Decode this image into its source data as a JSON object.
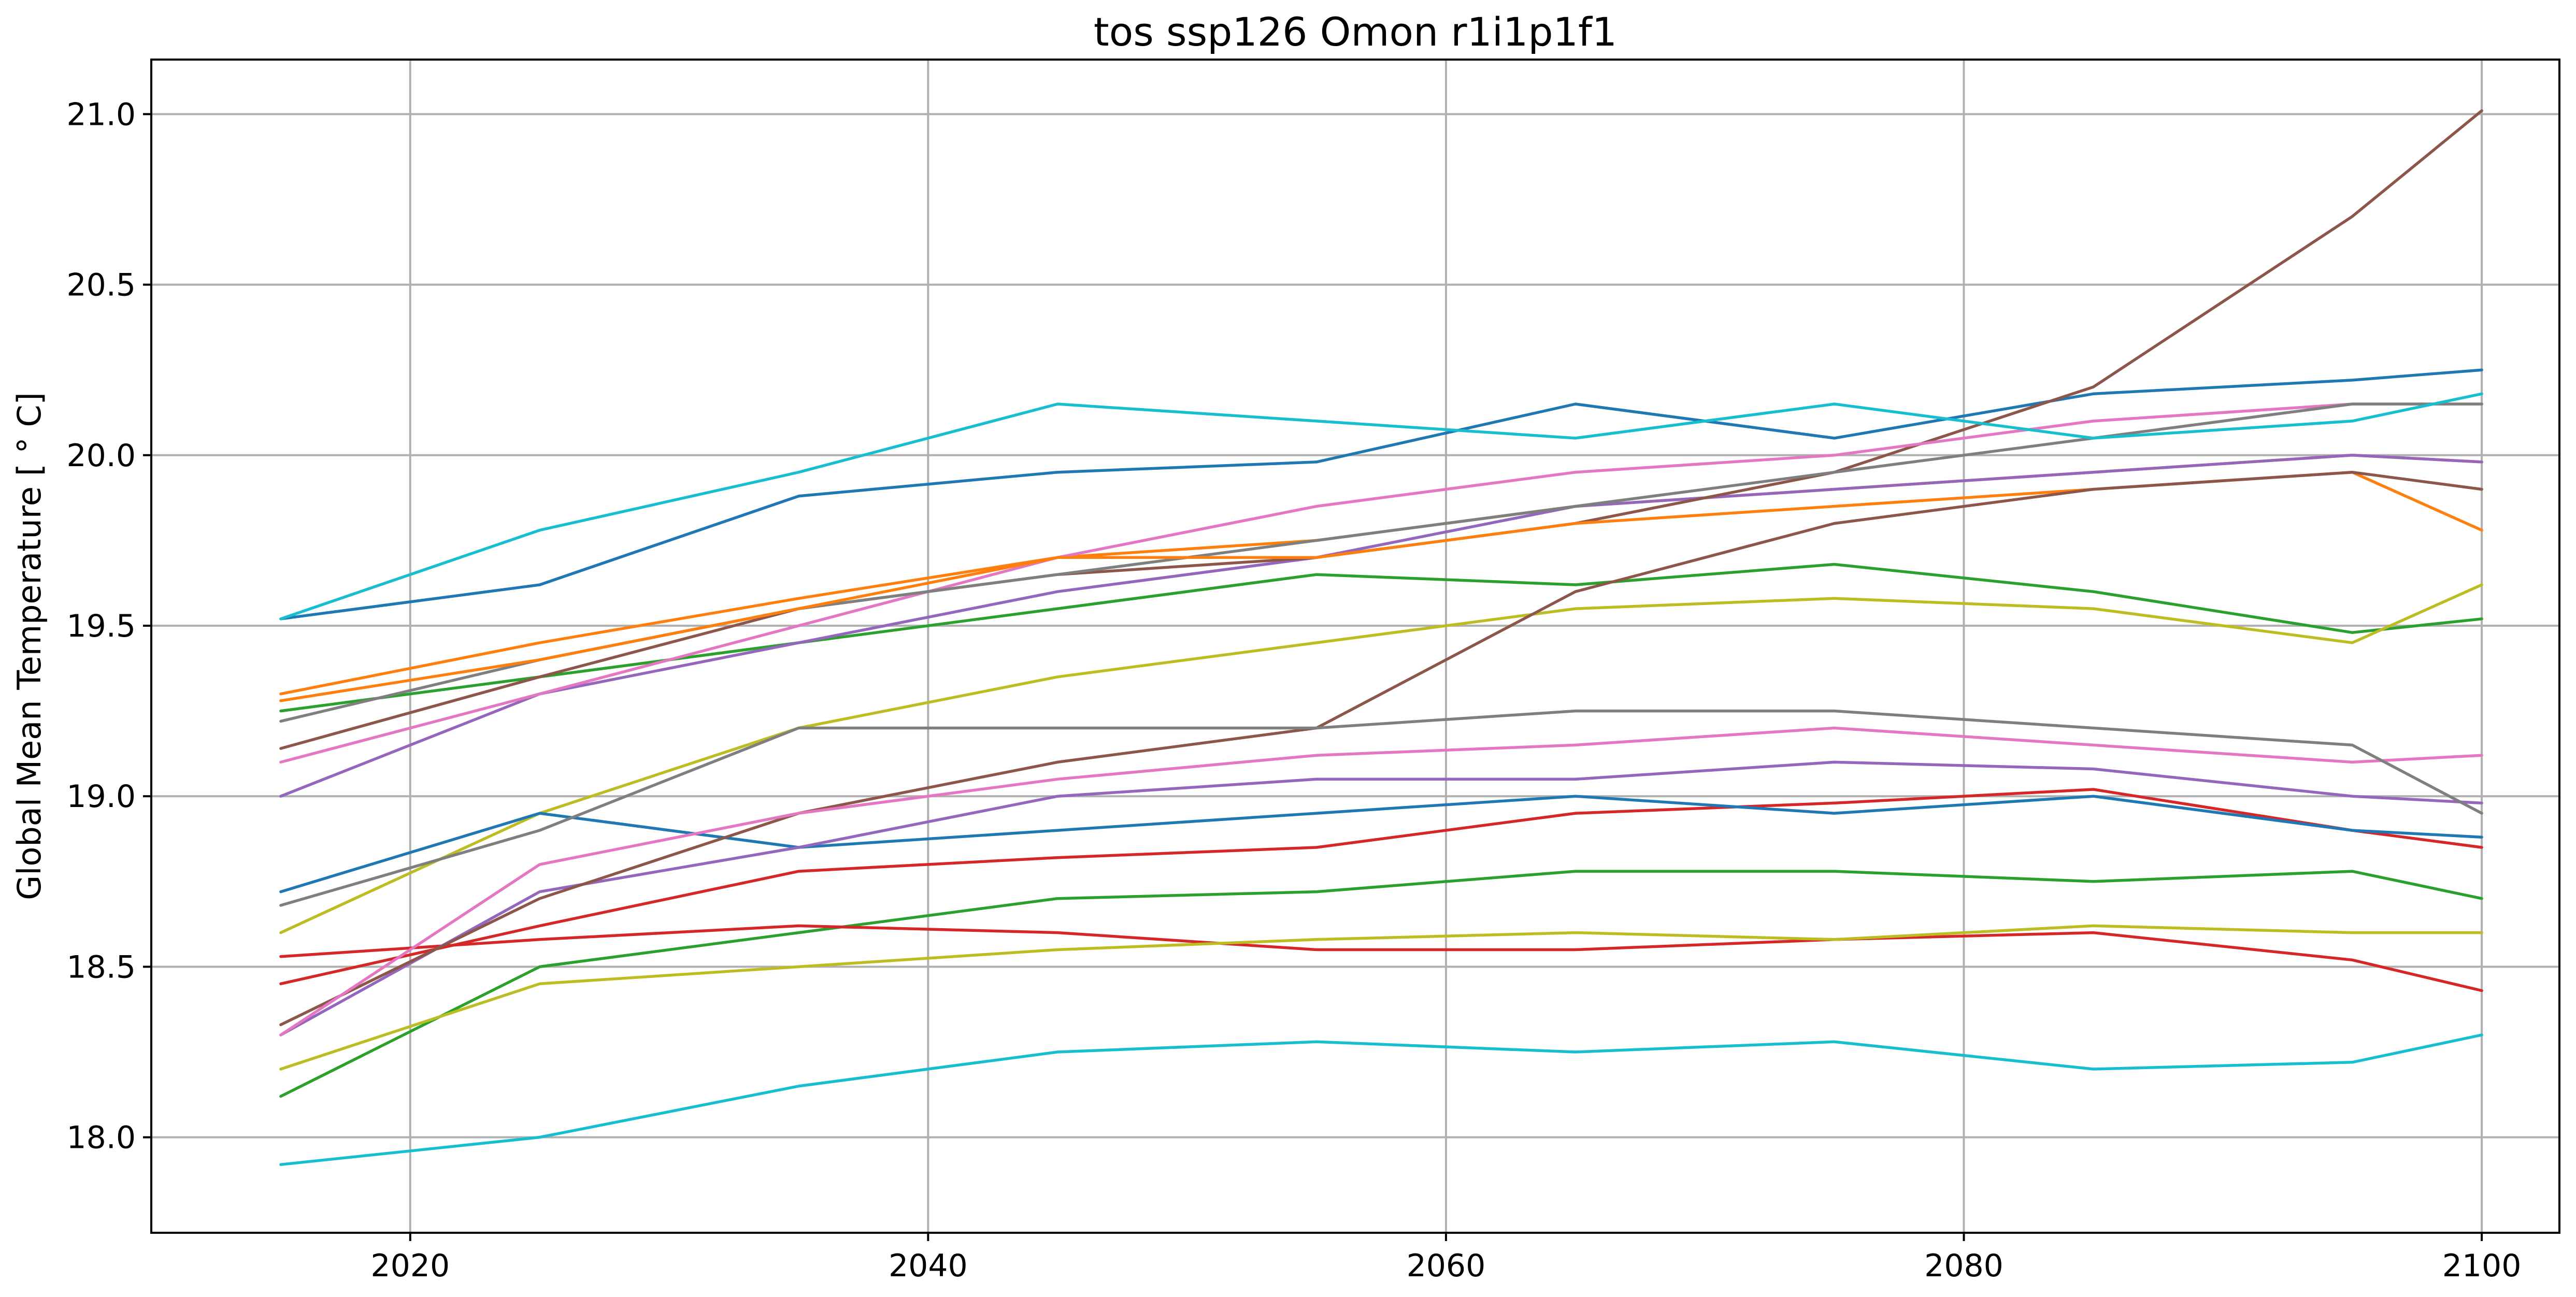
{
  "chart_data": {
    "type": "line",
    "title": "tos ssp126 Omon r1i1p1f1",
    "xlabel": "",
    "ylabel": "Global Mean Temperature [$^\\circ$C]",
    "ylabel_display": "Global Mean Temperature [ ° C]",
    "xlim": [
      2010,
      2103
    ],
    "ylim": [
      17.72,
      21.16
    ],
    "x_ticks": [
      2020,
      2040,
      2060,
      2080,
      2100
    ],
    "y_ticks": [
      18.0,
      18.5,
      19.0,
      19.5,
      20.0,
      20.5,
      21.0
    ],
    "y_tick_labels": [
      "18.0",
      "18.5",
      "19.0",
      "19.5",
      "20.0",
      "20.5",
      "21.0"
    ],
    "grid": true,
    "legend": "none",
    "x": [
      2015,
      2025,
      2035,
      2045,
      2055,
      2065,
      2075,
      2085,
      2095,
      2100
    ],
    "series": [
      {
        "color": "#1f77b4",
        "values": [
          19.52,
          19.62,
          19.88,
          19.95,
          19.98,
          20.15,
          20.05,
          20.18,
          20.22,
          20.25
        ]
      },
      {
        "color": "#ff7f0e",
        "values": [
          19.3,
          19.45,
          19.58,
          19.7,
          19.75,
          19.85,
          19.9,
          19.95,
          20.0,
          19.98
        ]
      },
      {
        "color": "#2ca02c",
        "values": [
          19.25,
          19.35,
          19.45,
          19.55,
          19.65,
          19.62,
          19.68,
          19.6,
          19.48,
          19.52
        ]
      },
      {
        "color": "#d62728",
        "values": [
          18.45,
          18.62,
          18.78,
          18.82,
          18.85,
          18.95,
          18.98,
          19.02,
          18.9,
          18.85
        ]
      },
      {
        "color": "#9467bd",
        "values": [
          19.0,
          19.3,
          19.45,
          19.6,
          19.7,
          19.85,
          19.9,
          19.95,
          20.0,
          19.98
        ]
      },
      {
        "color": "#8c564b",
        "values": [
          19.14,
          19.35,
          19.55,
          19.65,
          19.7,
          19.8,
          19.95,
          20.2,
          20.7,
          21.01
        ]
      },
      {
        "color": "#e377c2",
        "values": [
          19.1,
          19.3,
          19.5,
          19.7,
          19.85,
          19.95,
          20.0,
          20.1,
          20.15,
          20.15
        ]
      },
      {
        "color": "#7f7f7f",
        "values": [
          19.22,
          19.4,
          19.55,
          19.65,
          19.75,
          19.85,
          19.95,
          20.05,
          20.15,
          20.15
        ]
      },
      {
        "color": "#bcbd22",
        "values": [
          18.6,
          18.95,
          19.2,
          19.35,
          19.45,
          19.55,
          19.58,
          19.55,
          19.45,
          19.62
        ]
      },
      {
        "color": "#17becf",
        "values": [
          19.52,
          19.78,
          19.95,
          20.15,
          20.1,
          20.05,
          20.15,
          20.05,
          20.1,
          20.18
        ]
      },
      {
        "color": "#1f77b4",
        "values": [
          18.72,
          18.95,
          18.85,
          18.9,
          18.95,
          19.0,
          18.95,
          19.0,
          18.9,
          18.88
        ]
      },
      {
        "color": "#ff7f0e",
        "values": [
          19.28,
          19.4,
          19.55,
          19.7,
          19.7,
          19.8,
          19.85,
          19.9,
          19.95,
          19.78
        ]
      },
      {
        "color": "#2ca02c",
        "values": [
          18.12,
          18.5,
          18.6,
          18.7,
          18.72,
          18.78,
          18.78,
          18.75,
          18.78,
          18.7
        ]
      },
      {
        "color": "#d62728",
        "values": [
          18.53,
          18.58,
          18.62,
          18.6,
          18.55,
          18.55,
          18.58,
          18.6,
          18.52,
          18.43
        ]
      },
      {
        "color": "#9467bd",
        "values": [
          18.3,
          18.72,
          18.85,
          19.0,
          19.05,
          19.05,
          19.1,
          19.08,
          19.0,
          18.98
        ]
      },
      {
        "color": "#8c564b",
        "values": [
          18.33,
          18.7,
          18.95,
          19.1,
          19.2,
          19.6,
          19.8,
          19.9,
          19.95,
          19.9
        ]
      },
      {
        "color": "#e377c2",
        "values": [
          18.3,
          18.8,
          18.95,
          19.05,
          19.12,
          19.15,
          19.2,
          19.15,
          19.1,
          19.12
        ]
      },
      {
        "color": "#7f7f7f",
        "values": [
          18.68,
          18.9,
          19.2,
          19.2,
          19.2,
          19.25,
          19.25,
          19.2,
          19.15,
          18.95
        ]
      },
      {
        "color": "#bcbd22",
        "values": [
          18.2,
          18.45,
          18.5,
          18.55,
          18.58,
          18.6,
          18.58,
          18.62,
          18.6,
          18.6
        ]
      },
      {
        "color": "#17becf",
        "values": [
          17.92,
          18.0,
          18.15,
          18.25,
          18.28,
          18.25,
          18.28,
          18.2,
          18.22,
          18.3
        ]
      }
    ]
  }
}
